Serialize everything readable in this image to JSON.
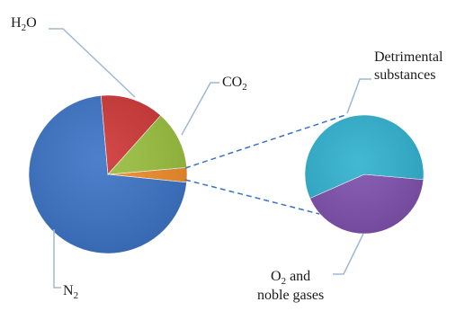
{
  "chart_data": [
    {
      "type": "pie",
      "categories": [
        "N2",
        "H2O",
        "CO2",
        "Detrimental substances and O2 and noble gases"
      ],
      "values": [
        72,
        13,
        12,
        3
      ],
      "series_labels": {
        "h2o": "H₂O",
        "co2": "CO₂",
        "n2": "N₂"
      },
      "colors": [
        "#3a72c5",
        "#cc3534",
        "#98be3c",
        "#ee8a2a"
      ]
    },
    {
      "type": "pie",
      "categories": [
        "Detrimental substances",
        "O2 and noble gases"
      ],
      "values": [
        58,
        42
      ],
      "labels": {
        "detrimental_line1": "Detrimental",
        "detrimental_line2": "substances",
        "o2_line1_main": "O",
        "o2_line1_sub": "2",
        "o2_line1_rest": " and",
        "o2_line2": "noble gases"
      },
      "colors": [
        "#2fb1cf",
        "#7d4fac"
      ]
    }
  ],
  "text": {
    "h2o_main": "H",
    "h2o_sub": "2",
    "h2o_rest": "O",
    "co2_main": "CO",
    "co2_sub": "2",
    "n2_main": "N",
    "n2_sub": "2"
  }
}
